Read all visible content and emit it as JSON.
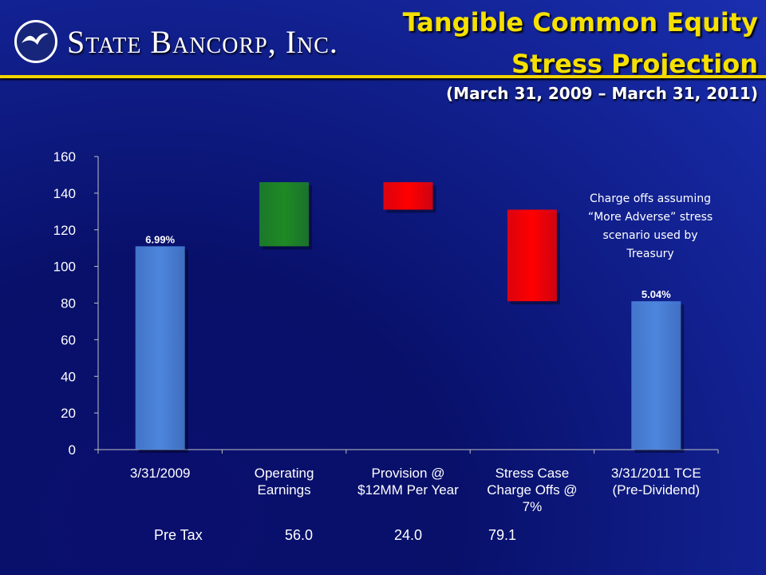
{
  "header": {
    "company": "State Bancorp, Inc.",
    "title_line1": "Tangible Common Equity",
    "title_line2": "Stress Projection",
    "subtitle": "(March 31, 2009 – March 31, 2011)"
  },
  "annotation": [
    "Charge offs assuming",
    "“More Adverse” stress",
    "scenario used by",
    "Treasury"
  ],
  "pre_tax": {
    "label": "Pre Tax",
    "values": [
      "56.0",
      "24.0",
      "79.1"
    ]
  },
  "chart_data": {
    "type": "bar",
    "subtype": "waterfall",
    "categories": [
      [
        "3/31/2009"
      ],
      [
        "Operating",
        "Earnings"
      ],
      [
        "Provision @",
        "$12MM Per Year"
      ],
      [
        "Stress Case",
        "Charge Offs @",
        "7%"
      ],
      [
        "3/31/2011 TCE",
        "(Pre-Dividend)"
      ]
    ],
    "bars": [
      {
        "base": 0,
        "top": 111,
        "kind": "total",
        "color": "#4d86dd",
        "label": "6.99%"
      },
      {
        "base": 111,
        "top": 146,
        "kind": "increase",
        "color": "#1f8a24",
        "label": ""
      },
      {
        "base": 131,
        "top": 146,
        "kind": "decrease",
        "color": "#ff0000",
        "label": ""
      },
      {
        "base": 81,
        "top": 131,
        "kind": "decrease",
        "color": "#ff0000",
        "label": ""
      },
      {
        "base": 0,
        "top": 81,
        "kind": "total",
        "color": "#4d86dd",
        "label": "5.04%"
      }
    ],
    "yticks": [
      0,
      20,
      40,
      60,
      80,
      100,
      120,
      140,
      160
    ],
    "ylim": [
      0,
      160
    ],
    "grid": false,
    "legend": "none"
  },
  "colors": {
    "title": "#f5e000",
    "rule": "#f2d500",
    "total_bar": "#4d86dd",
    "increase_bar": "#1f8a24",
    "decrease_bar": "#ff0000"
  }
}
